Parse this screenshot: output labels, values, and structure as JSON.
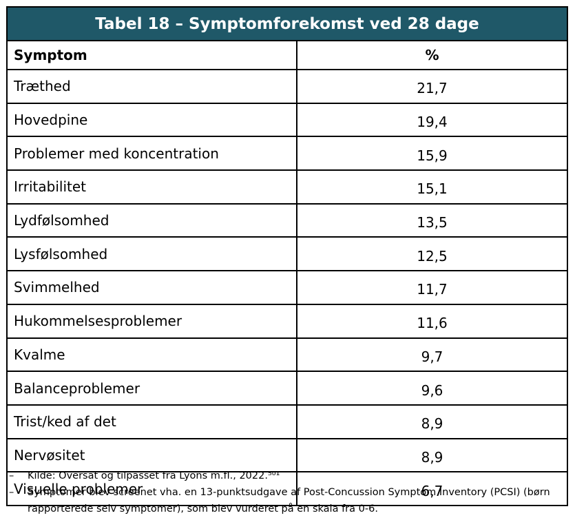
{
  "table": {
    "title": "Tabel 18 – Symptomforekomst ved 28 dage",
    "headers": [
      "Symptom",
      "%"
    ],
    "rows": [
      {
        "symptom": "Træthed",
        "pct": "21,7"
      },
      {
        "symptom": "Hovedpine",
        "pct": "19,4"
      },
      {
        "symptom": "Problemer med koncentration",
        "pct": "15,9"
      },
      {
        "symptom": "Irritabilitet",
        "pct": "15,1"
      },
      {
        "symptom": "Lydfølsomhed",
        "pct": "13,5"
      },
      {
        "symptom": "Lysfølsomhed",
        "pct": "12,5"
      },
      {
        "symptom": "Svimmelhed",
        "pct": "11,7"
      },
      {
        "symptom": "Hukommelsesproblemer",
        "pct": "11,6"
      },
      {
        "symptom": "Kvalme",
        "pct": "9,7"
      },
      {
        "symptom": "Balanceproblemer",
        "pct": "9,6"
      },
      {
        "symptom": "Trist/ked af det",
        "pct": "8,9"
      },
      {
        "symptom": "Nervøsitet",
        "pct": "8,9"
      },
      {
        "symptom": "Visuelle problemer",
        "pct": "6,7"
      }
    ],
    "header_color": "#1f5868"
  },
  "notes": [
    {
      "bullet": "–",
      "text": "Kilde: Oversat og tilpasset fra Lyons m.fl., 2022.⁵⁰¹"
    },
    {
      "bullet": "–",
      "text": "Symptomer blev screenet vha. en 13-punktsudgave af Post-Concussion Symptom Inventory (PCSI) (børn rapporterede selv symptomer), som blev vurderet på en skala fra 0-6."
    }
  ]
}
